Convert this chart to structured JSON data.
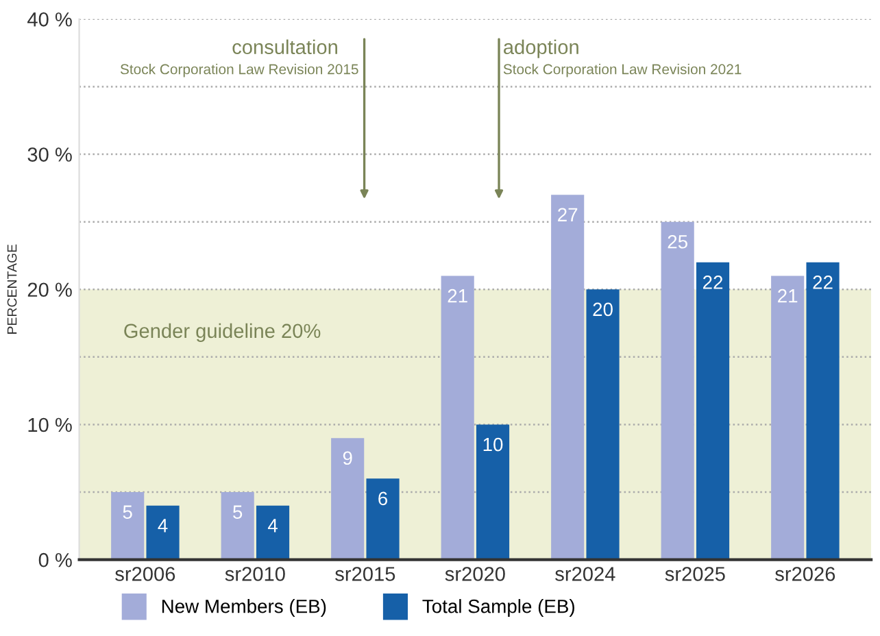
{
  "chart_data": {
    "type": "bar",
    "ylabel": "PERCENTAGE",
    "categories": [
      "sr2006",
      "sr2010",
      "sr2015",
      "sr2020",
      "sr2024",
      "sr2025",
      "sr2026"
    ],
    "series": [
      {
        "name": "New Members (EB)",
        "color": "#a3acd9",
        "values": [
          5,
          5,
          9,
          21,
          27,
          25,
          21
        ]
      },
      {
        "name": "Total Sample (EB)",
        "color": "#1660a8",
        "values": [
          4,
          4,
          6,
          10,
          20,
          22,
          22
        ]
      }
    ],
    "ylim": [
      0,
      40
    ],
    "yticks": [
      {
        "value": 0,
        "label": "0 %"
      },
      {
        "value": 5,
        "label": null
      },
      {
        "value": 10,
        "label": "10 %"
      },
      {
        "value": 15,
        "label": null
      },
      {
        "value": 20,
        "label": "20 %"
      },
      {
        "value": 25,
        "label": null
      },
      {
        "value": 30,
        "label": "30 %"
      },
      {
        "value": 35,
        "label": null
      },
      {
        "value": 40,
        "label": "40 %"
      }
    ],
    "bands": [
      {
        "axis": "y",
        "from": 0,
        "to": 20,
        "label": "Gender guideline 20%",
        "color": "#eef0d6"
      }
    ],
    "annotations": [
      "consultation",
      "Stock Corporation Law Revision 2015",
      "adoption",
      "Stock Corporation Law Revision 2021"
    ],
    "data_labels": true,
    "grid": "y",
    "legend": "bottom"
  }
}
